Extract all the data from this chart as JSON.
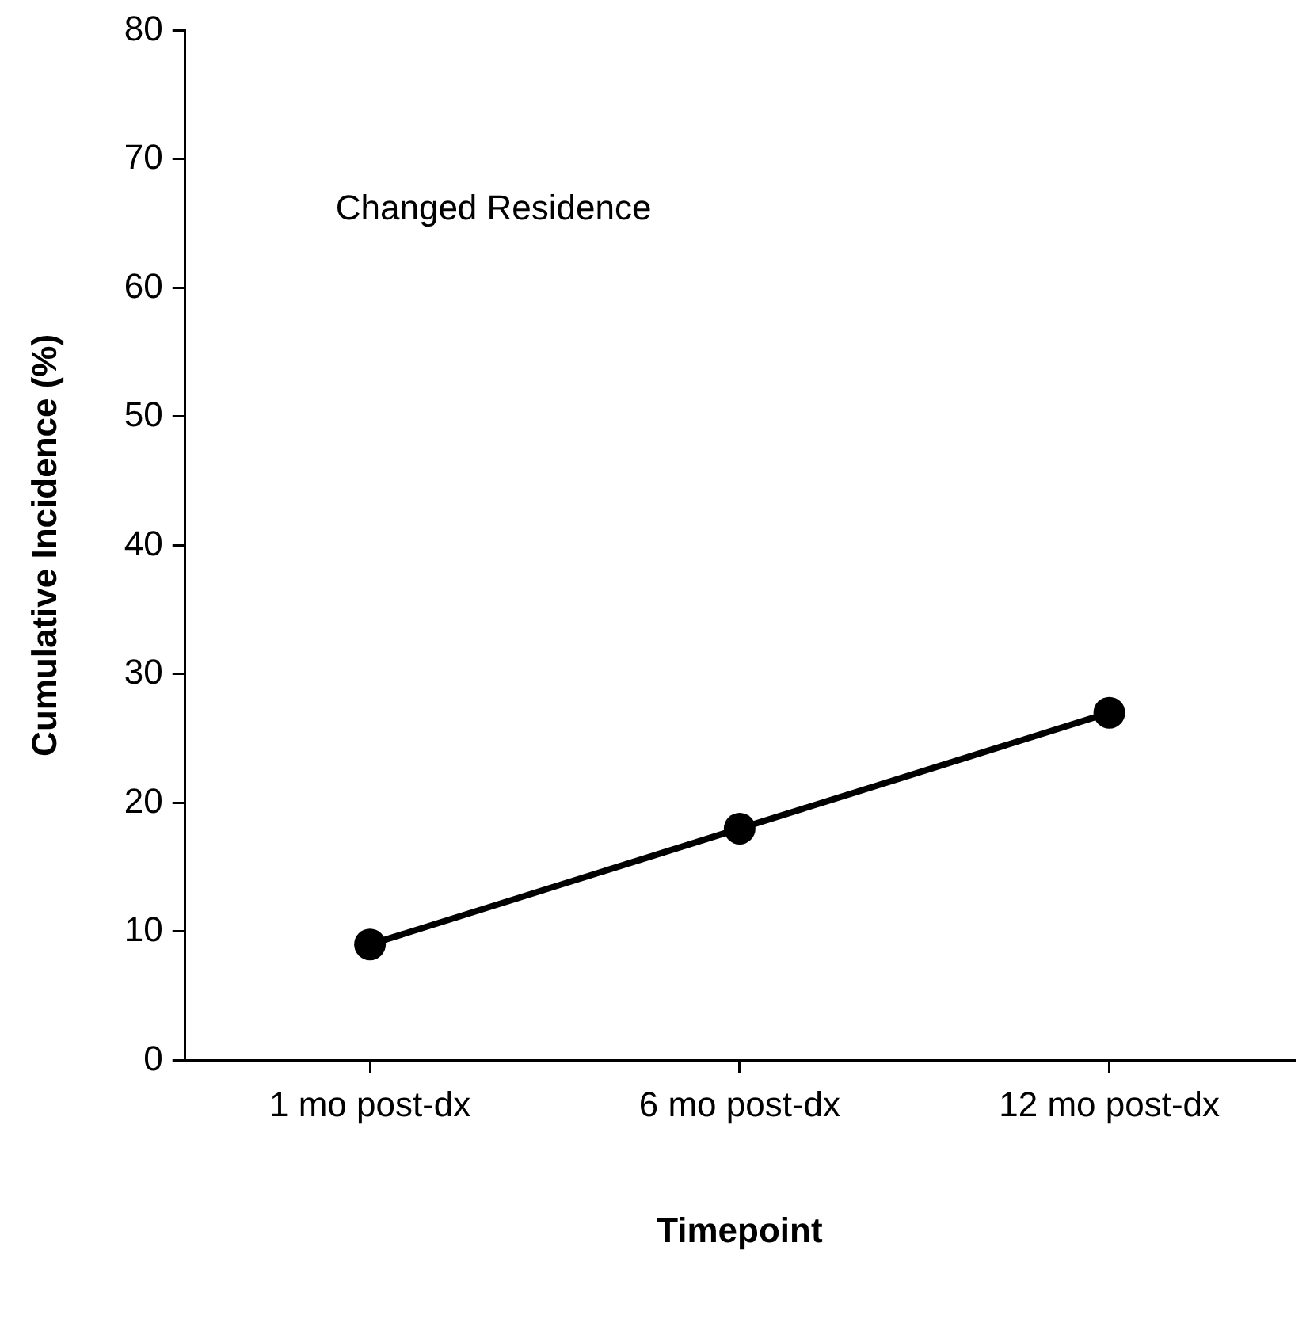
{
  "chart_data": {
    "type": "line",
    "xlabel": "Timepoint",
    "ylabel": "Cumulative Incidence (%)",
    "categories": [
      "1 mo post-dx",
      "6 mo post-dx",
      "12 mo post-dx"
    ],
    "series": [
      {
        "color": "#000000",
        "values": [
          9,
          18,
          27
        ]
      }
    ],
    "ylim": [
      0,
      80
    ],
    "yticks": [
      0,
      10,
      20,
      30,
      40,
      50,
      60,
      70,
      80
    ],
    "annotations": [
      "Changed Residence"
    ],
    "grid": false,
    "legend": false,
    "marker": "circle",
    "line_style": "solid"
  }
}
